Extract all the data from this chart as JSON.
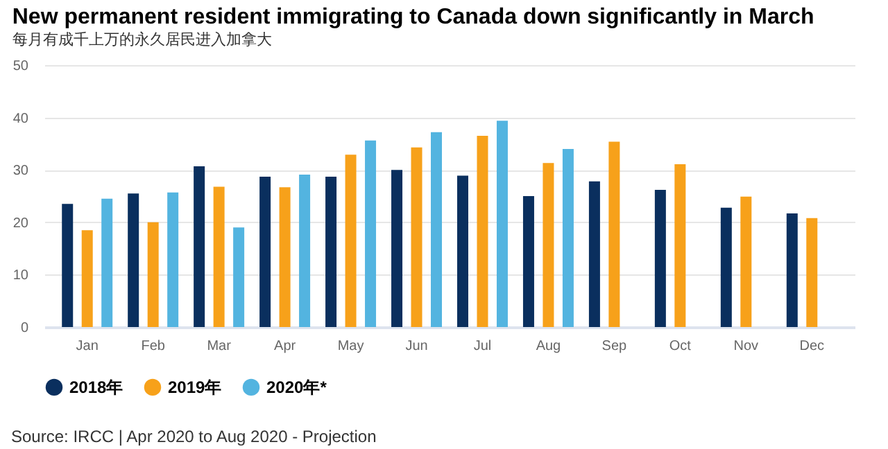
{
  "chart_data": {
    "type": "bar",
    "title": "New permanent resident immigrating to Canada down significantly in March",
    "subtitle": "每月有成千上万的永久居民进入加拿大",
    "annotations": [
      "Source: IRCC | Apr 2020 to Aug 2020 - Projection"
    ],
    "categories": [
      "Jan",
      "Feb",
      "Mar",
      "Apr",
      "May",
      "Jun",
      "Jul",
      "Aug",
      "Sep",
      "Oct",
      "Nov",
      "Dec"
    ],
    "series": [
      {
        "name": "2018年",
        "color": "#0a2f5e",
        "values": [
          23.5,
          25.5,
          30.7,
          28.7,
          28.7,
          30,
          28.9,
          25,
          27.8,
          26.2,
          22.8,
          21.7
        ]
      },
      {
        "name": "2019年",
        "color": "#f7a11a",
        "values": [
          18.5,
          20,
          26.8,
          26.7,
          32.9,
          34.3,
          36.5,
          31.3,
          35.4,
          31.1,
          24.9,
          20.8
        ]
      },
      {
        "name": "2020年*",
        "color": "#53b4e0",
        "values": [
          24.5,
          25.7,
          19,
          29.1,
          35.6,
          37.2,
          39.4,
          34,
          null,
          null,
          null,
          null
        ]
      }
    ],
    "ylim": [
      0,
      50
    ],
    "yticks": [
      0,
      10,
      20,
      30,
      40,
      50
    ],
    "grid": "y",
    "legend": "bottom",
    "marker": "circle"
  }
}
